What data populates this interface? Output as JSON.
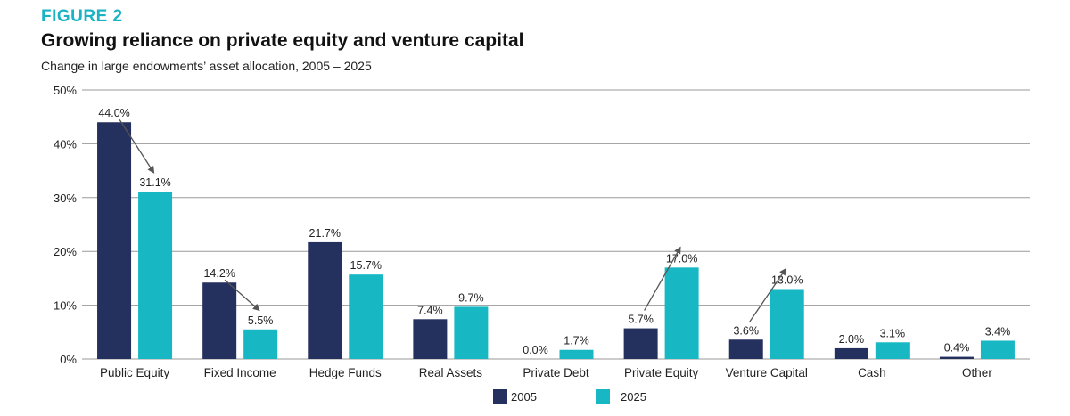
{
  "figure_label": "FIGURE 2",
  "title": "Growing reliance on private equity and venture capital",
  "subtitle": "Change in large endowments’ asset allocation, 2005 – 2025",
  "colors": {
    "label_accent": "#1bb3c4",
    "series_2005": "#24305e",
    "series_2025": "#17b8c4",
    "grid": "#9a9a9a"
  },
  "chart_data": {
    "type": "bar",
    "categories": [
      "Public Equity",
      "Fixed Income",
      "Hedge Funds",
      "Real Assets",
      "Private Debt",
      "Private Equity",
      "Venture Capital",
      "Cash",
      "Other"
    ],
    "series": [
      {
        "name": "2005",
        "values": [
          44.0,
          14.2,
          21.7,
          7.4,
          0.0,
          5.7,
          3.6,
          2.0,
          0.4
        ],
        "labels": [
          "44.0%",
          "14.2%",
          "21.7%",
          "7.4%",
          "0.0%",
          "5.7%",
          "3.6%",
          "2.0%",
          "0.4%"
        ]
      },
      {
        "name": "2025",
        "values": [
          31.1,
          5.5,
          15.7,
          9.7,
          1.7,
          17.0,
          13.0,
          3.1,
          3.4
        ],
        "labels": [
          "31.1%",
          "5.5%",
          "15.7%",
          "9.7%",
          "1.7%",
          "17.0%",
          "13.0%",
          "3.1%",
          "3.4%"
        ]
      }
    ],
    "ylim": [
      0,
      50
    ],
    "yticks": [
      0,
      10,
      20,
      30,
      40,
      50
    ],
    "ytick_labels": [
      "0%",
      "10%",
      "20%",
      "30%",
      "40%",
      "50%"
    ],
    "grid": true,
    "legend_position": "bottom-center",
    "annotations": [
      {
        "type": "arrow",
        "category": "Public Equity",
        "from": "44.0%",
        "to": "31.1%"
      },
      {
        "type": "arrow",
        "category": "Fixed Income",
        "from": "14.2%",
        "to": "5.5%"
      },
      {
        "type": "arrow",
        "category": "Private Equity",
        "from": "5.7%",
        "to": "17.0%"
      },
      {
        "type": "arrow",
        "category": "Venture Capital",
        "from": "3.6%",
        "to": "13.0%"
      }
    ]
  }
}
